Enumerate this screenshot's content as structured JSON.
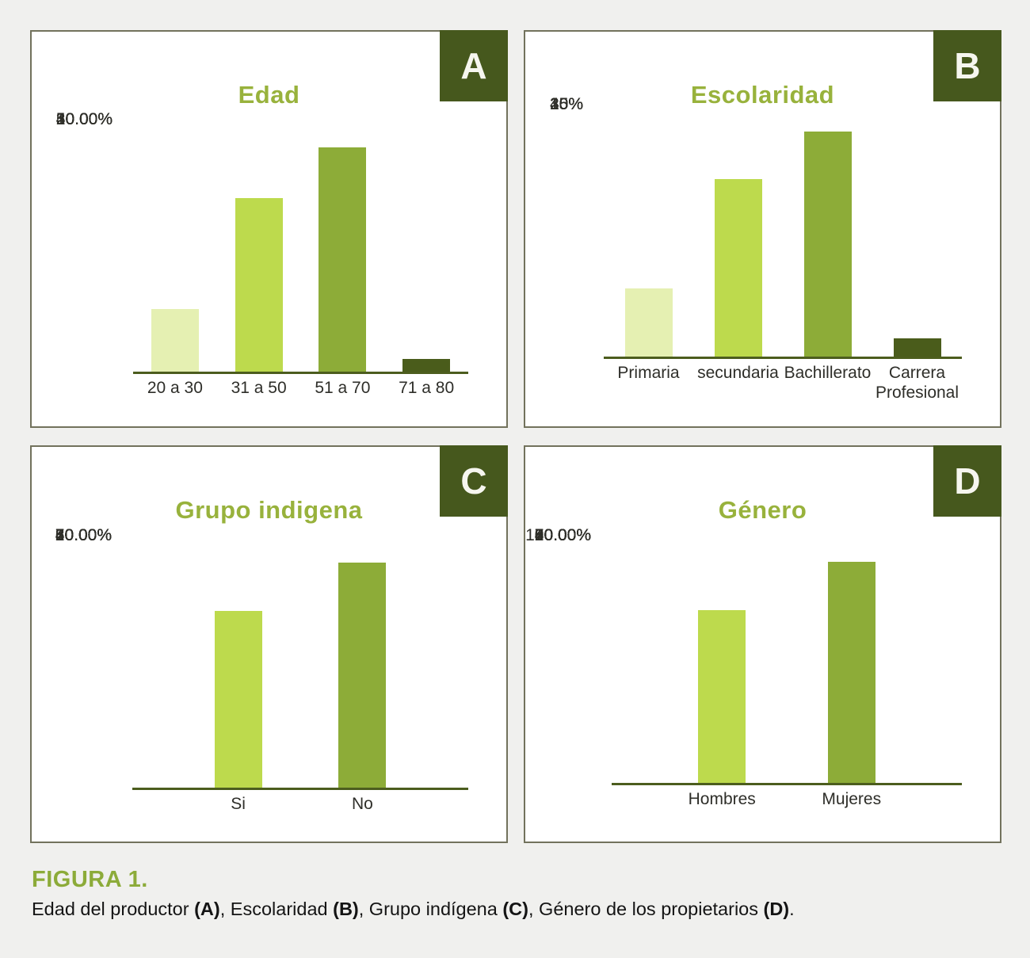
{
  "palette": {
    "background": "#f0f0ee",
    "panel_border": "#72725c",
    "title_green": "#98b23c",
    "tab_background": "#46581d",
    "tab_text": "#f6f6ef",
    "axis_line": "#4c5d1e",
    "tick_text": "#2e2e29",
    "figura_green": "#8cab39",
    "bar_colors": {
      "light": "#e5f0b2",
      "bright": "#bdda4d",
      "olive": "#8dac38",
      "dark": "#4a5c1b"
    }
  },
  "chart_data": [
    {
      "type": "bar",
      "tab": "A",
      "title": "Edad",
      "categories": [
        "20 a 30",
        "31 a 50",
        "51 a 70",
        "71 a 80"
      ],
      "values": [
        12.5,
        34.5,
        44.5,
        2.5
      ],
      "unit": "%",
      "ytick_labels": [
        "50.00%",
        "40.00%",
        "30.00%",
        "20.00%",
        "10.00%",
        "0.00%"
      ],
      "ytick_values": [
        50,
        40,
        30,
        20,
        10,
        0
      ],
      "ylim": [
        0,
        50
      ],
      "bar_color_names": [
        "light",
        "bright",
        "olive",
        "dark"
      ],
      "grid": false,
      "legend": false
    },
    {
      "type": "bar",
      "tab": "B",
      "title": "Escolaridad",
      "categories": [
        "Primaria",
        "secundaria",
        "Bachillerato",
        "Carrera Profesional"
      ],
      "values": [
        9.5,
        29.3,
        36.3,
        2.5
      ],
      "unit": "%",
      "ytick_labels": [
        "40%",
        "35%",
        "30%",
        "20%",
        "15%",
        "10%",
        "5%",
        "0%"
      ],
      "ytick_values": [
        40,
        35,
        30,
        20,
        15,
        10,
        5,
        0
      ],
      "ylim": [
        0,
        40
      ],
      "bar_color_names": [
        "light",
        "bright",
        "olive",
        "dark"
      ],
      "grid": false,
      "legend": false
    },
    {
      "type": "bar",
      "tab": "C",
      "title": "Grupo indigena",
      "categories": [
        "Si",
        "No"
      ],
      "values": [
        56,
        71.5
      ],
      "unit": "%",
      "ytick_labels": [
        "80.00%",
        "70.00%",
        "60.00%",
        "50.00%",
        "40.00%",
        "30.00%",
        "20.00%",
        "10.00%",
        "0.00%"
      ],
      "ytick_values": [
        80,
        70,
        60,
        50,
        40,
        30,
        20,
        10,
        0
      ],
      "ylim": [
        0,
        80
      ],
      "bar_color_names": [
        "bright",
        "olive"
      ],
      "grid": false,
      "legend": false
    },
    {
      "type": "bar",
      "tab": "D",
      "title": "Género",
      "categories": [
        "Hombres",
        "Mujeres"
      ],
      "values": [
        70,
        89.5
      ],
      "unit": "%",
      "ytick_labels": [
        "100.00%",
        "90.00%",
        "80.00%",
        "70.00%",
        "60.00%",
        "50.00%",
        "40.00%",
        "30.00%",
        "20.00%",
        "10.00%",
        "0.00%"
      ],
      "ytick_values": [
        100,
        90,
        80,
        70,
        60,
        50,
        40,
        30,
        20,
        10,
        0
      ],
      "ylim": [
        0,
        100
      ],
      "bar_color_names": [
        "bright",
        "olive"
      ],
      "grid": false,
      "legend": false
    }
  ],
  "caption": {
    "heading": "FIGURA 1.",
    "segments": [
      {
        "t": "Edad del productor ",
        "b": 0
      },
      {
        "t": "(A)",
        "b": 1
      },
      {
        "t": ", Escolaridad ",
        "b": 0
      },
      {
        "t": "(B)",
        "b": 1
      },
      {
        "t": ", Grupo indígena ",
        "b": 0
      },
      {
        "t": "(C)",
        "b": 1
      },
      {
        "t": ", Género de los propietarios ",
        "b": 0
      },
      {
        "t": "(D)",
        "b": 1
      },
      {
        "t": ".",
        "b": 0
      }
    ]
  }
}
